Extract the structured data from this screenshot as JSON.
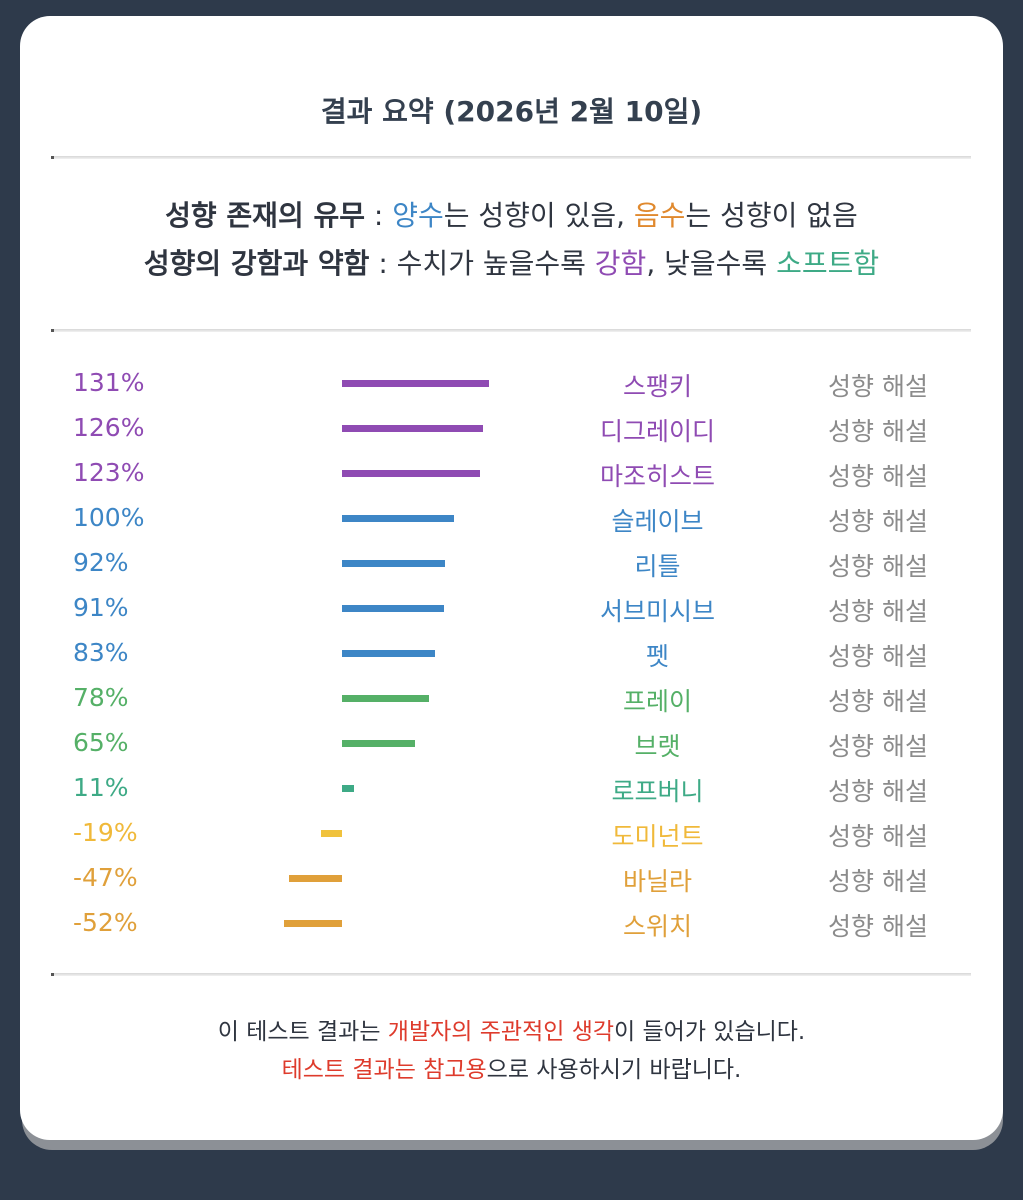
{
  "title": "결과 요약 (2026년 2월 10일)",
  "legend": {
    "line1": {
      "label": "성향 존재의 유무",
      "sep": " : ",
      "positive": "양수",
      "mid": "는 성향이 있음, ",
      "negative": "음수",
      "end": "는 성향이 없음"
    },
    "line2": {
      "label": "성향의 강함과 약함",
      "sep": " : ",
      "pre": "수치가 높을수록 ",
      "strong": "강함",
      "mid": ", 낮을수록 ",
      "soft": "소프트함"
    }
  },
  "colors": {
    "purple": "#8f4bb3",
    "blue": "#3d86c6",
    "green": "#55b067",
    "teal": "#3eaa86",
    "yellow": "#f0c23c",
    "orange": "#e0a03a"
  },
  "chart_data": {
    "type": "bar",
    "orientation": "horizontal",
    "categories": [
      "스팽키",
      "디그레이디",
      "마조히스트",
      "슬레이브",
      "리틀",
      "서브미시브",
      "펫",
      "프레이",
      "브랫",
      "로프버니",
      "도미넌트",
      "바닐라",
      "스위치"
    ],
    "values": [
      131,
      126,
      123,
      100,
      92,
      91,
      83,
      78,
      65,
      11,
      -19,
      -47,
      -52
    ],
    "value_labels": [
      "131%",
      "126%",
      "123%",
      "100%",
      "92%",
      "91%",
      "83%",
      "78%",
      "65%",
      "11%",
      "-19%",
      "-47%",
      "-52%"
    ],
    "unit": "%",
    "bar_colors": [
      "#8f4bb3",
      "#8f4bb3",
      "#8f4bb3",
      "#3d86c6",
      "#3d86c6",
      "#3d86c6",
      "#3d86c6",
      "#55b067",
      "#55b067",
      "#3eaa86",
      "#f0c23c",
      "#e0a03a",
      "#e0a03a"
    ],
    "text_colors": [
      "#8f4bb3",
      "#8f4bb3",
      "#8f4bb3",
      "#3d86c6",
      "#3d86c6",
      "#3d86c6",
      "#3d86c6",
      "#55b067",
      "#55b067",
      "#3eaa86",
      "#f0b93a",
      "#e0a03a",
      "#e0a03a"
    ],
    "action_label": "성향 해설",
    "xlim": [
      -60,
      140
    ]
  },
  "footer": {
    "line1": {
      "pre": "이 테스트 결과는 ",
      "highlight": "개발자의 주관적인 생각",
      "post": "이 들어가 있습니다."
    },
    "line2": {
      "highlight": "테스트 결과는 참고용",
      "post": "으로 사용하시기 바랍니다."
    }
  }
}
